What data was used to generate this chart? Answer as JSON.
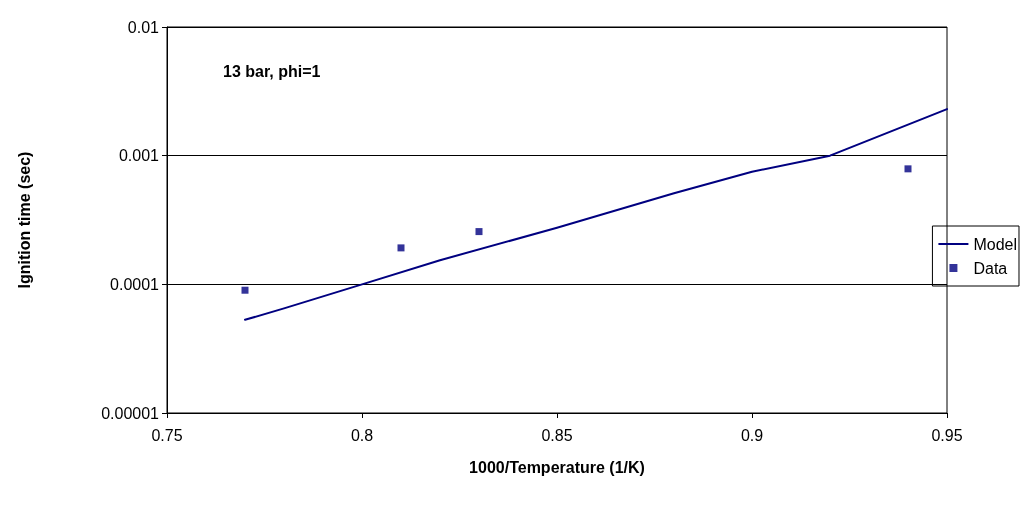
{
  "chart_data": {
    "type": "line",
    "xlabel": "1000/Temperature (1/K)",
    "ylabel": "Ignition time (sec)",
    "annotations": [
      "13 bar, phi=1"
    ],
    "series": [
      {
        "name": "Model",
        "color": "#000080",
        "marker": "none",
        "x": [
          0.77,
          0.78,
          0.8,
          0.82,
          0.85,
          0.88,
          0.9,
          0.92,
          0.95
        ],
        "values": [
          5.3e-05,
          6.5e-05,
          0.0001,
          0.000154,
          0.000275,
          0.00051,
          0.00075,
          0.001,
          0.0023
        ]
      },
      {
        "name": "Data",
        "type": "scatter",
        "color": "#000080",
        "marker": "square",
        "x": [
          0.77,
          0.81,
          0.83,
          0.94
        ],
        "values": [
          9e-05,
          0.000192,
          0.000257,
          0.00079
        ]
      }
    ],
    "xlim": [
      0.75,
      0.95
    ],
    "xticks": [
      0.75,
      0.8,
      0.85,
      0.9,
      0.95
    ],
    "ylim": [
      1e-05,
      0.01
    ],
    "yticks": [
      {
        "value": 1e-05,
        "label": "0.00001"
      },
      0.0001,
      0.001,
      0.01
    ],
    "log": "y",
    "grid": "y",
    "legend": "right"
  }
}
